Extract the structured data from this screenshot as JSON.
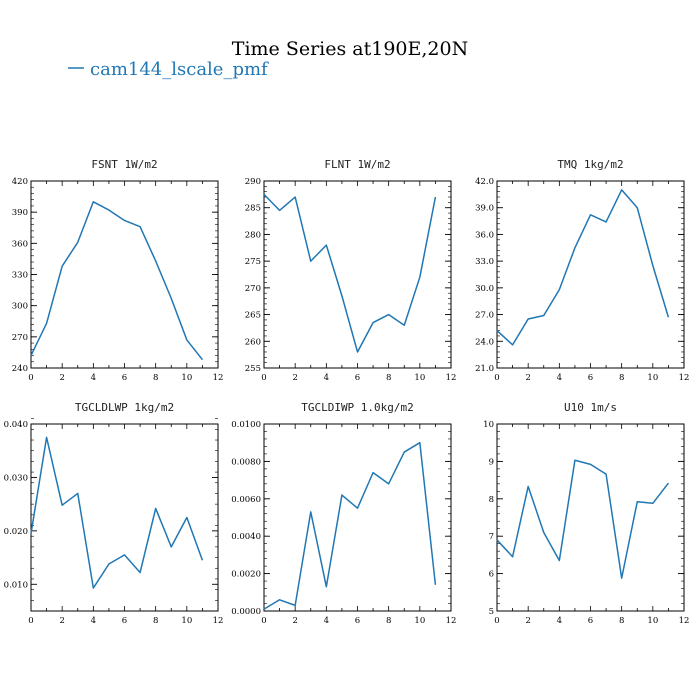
{
  "figure": {
    "title": "Time Series at190E,20N",
    "legend_label": "cam144_lscale_pmf",
    "series_color": "#2077b4"
  },
  "chart_data": [
    {
      "type": "line",
      "title": "FSNT   1W/m2",
      "xlabel": "",
      "ylabel": "",
      "xlim": [
        0,
        12
      ],
      "ylim": [
        240,
        420
      ],
      "xticks": [
        0,
        2,
        4,
        6,
        8,
        10,
        12
      ],
      "yticks": [
        240,
        270,
        300,
        330,
        360,
        390,
        420
      ],
      "ytick_labels": [
        "240",
        "270",
        "300",
        "330",
        "360",
        "390",
        "420"
      ],
      "series": [
        {
          "name": "cam144_lscale_pmf",
          "x": [
            0,
            1,
            2,
            3,
            4,
            5,
            6,
            7,
            8,
            9,
            10,
            11
          ],
          "values": [
            252,
            283,
            338,
            361,
            400,
            392,
            382,
            376,
            343,
            307,
            267,
            248
          ]
        }
      ]
    },
    {
      "type": "line",
      "title": "FLNT   1W/m2",
      "xlabel": "",
      "ylabel": "",
      "xlim": [
        0,
        12
      ],
      "ylim": [
        255,
        290
      ],
      "xticks": [
        0,
        2,
        4,
        6,
        8,
        10,
        12
      ],
      "yticks": [
        255,
        260,
        265,
        270,
        275,
        280,
        285,
        290
      ],
      "ytick_labels": [
        "255",
        "260",
        "265",
        "270",
        "275",
        "280",
        "285",
        "290"
      ],
      "series": [
        {
          "name": "cam144_lscale_pmf",
          "x": [
            0,
            1,
            2,
            3,
            4,
            5,
            6,
            7,
            8,
            9,
            10,
            11
          ],
          "values": [
            287.5,
            284.5,
            287,
            275,
            278,
            268.5,
            258,
            263.5,
            265,
            263,
            272,
            287
          ]
        }
      ]
    },
    {
      "type": "line",
      "title": "TMQ   1kg/m2",
      "xlabel": "",
      "ylabel": "",
      "xlim": [
        0,
        12
      ],
      "ylim": [
        21,
        42
      ],
      "xticks": [
        0,
        2,
        4,
        6,
        8,
        10,
        12
      ],
      "yticks": [
        21,
        24,
        27,
        30,
        33,
        36,
        39,
        42
      ],
      "ytick_labels": [
        "21.0",
        "24.0",
        "27.0",
        "30.0",
        "33.0",
        "36.0",
        "39.0",
        "42.0"
      ],
      "series": [
        {
          "name": "cam144_lscale_pmf",
          "x": [
            0,
            1,
            2,
            3,
            4,
            5,
            6,
            7,
            8,
            9,
            10,
            11
          ],
          "values": [
            25.2,
            23.6,
            26.5,
            26.9,
            29.8,
            34.5,
            38.2,
            37.4,
            41.0,
            39.0,
            32.5,
            26.7
          ]
        }
      ]
    },
    {
      "type": "line",
      "title": "TGCLDLWP   1kg/m2",
      "xlabel": "",
      "ylabel": "",
      "xlim": [
        0,
        12
      ],
      "ylim": [
        0.005,
        0.04
      ],
      "xticks": [
        0,
        2,
        4,
        6,
        8,
        10,
        12
      ],
      "yticks": [
        0.01,
        0.02,
        0.03,
        0.04
      ],
      "ytick_labels": [
        "0.010",
        "0.020",
        "0.030",
        "0.040"
      ],
      "series": [
        {
          "name": "cam144_lscale_pmf",
          "x": [
            0,
            1,
            2,
            3,
            4,
            5,
            6,
            7,
            8,
            9,
            10,
            11
          ],
          "values": [
            0.0195,
            0.0375,
            0.0248,
            0.027,
            0.0093,
            0.0138,
            0.0155,
            0.0122,
            0.0242,
            0.017,
            0.0225,
            0.0145
          ]
        }
      ]
    },
    {
      "type": "line",
      "title": "TGCLDIWP   1.0kg/m2",
      "xlabel": "",
      "ylabel": "",
      "xlim": [
        0,
        12
      ],
      "ylim": [
        0,
        0.01
      ],
      "xticks": [
        0,
        2,
        4,
        6,
        8,
        10,
        12
      ],
      "yticks": [
        0,
        0.002,
        0.004,
        0.006,
        0.008,
        0.01
      ],
      "ytick_labels": [
        "0.0000",
        "0.0020",
        "0.0040",
        "0.0060",
        "0.0080",
        "0.0100"
      ],
      "series": [
        {
          "name": "cam144_lscale_pmf",
          "x": [
            0,
            1,
            2,
            3,
            4,
            5,
            6,
            7,
            8,
            9,
            10,
            11
          ],
          "values": [
            0.0001,
            0.0006,
            0.0003,
            0.0053,
            0.0013,
            0.0062,
            0.0055,
            0.0074,
            0.0068,
            0.0085,
            0.009,
            0.0014
          ]
        }
      ]
    },
    {
      "type": "line",
      "title": "U10   1m/s",
      "xlabel": "",
      "ylabel": "",
      "xlim": [
        0,
        12
      ],
      "ylim": [
        5,
        10
      ],
      "xticks": [
        0,
        2,
        4,
        6,
        8,
        10,
        12
      ],
      "yticks": [
        5,
        6,
        7,
        8,
        9,
        10
      ],
      "ytick_labels": [
        "5",
        "6",
        "7",
        "8",
        "9",
        "10"
      ],
      "series": [
        {
          "name": "cam144_lscale_pmf",
          "x": [
            0,
            1,
            2,
            3,
            4,
            5,
            6,
            7,
            8,
            9,
            10,
            11
          ],
          "values": [
            6.9,
            6.45,
            8.33,
            7.1,
            6.35,
            9.03,
            8.92,
            8.66,
            5.88,
            7.92,
            7.88,
            8.42
          ]
        }
      ]
    }
  ]
}
